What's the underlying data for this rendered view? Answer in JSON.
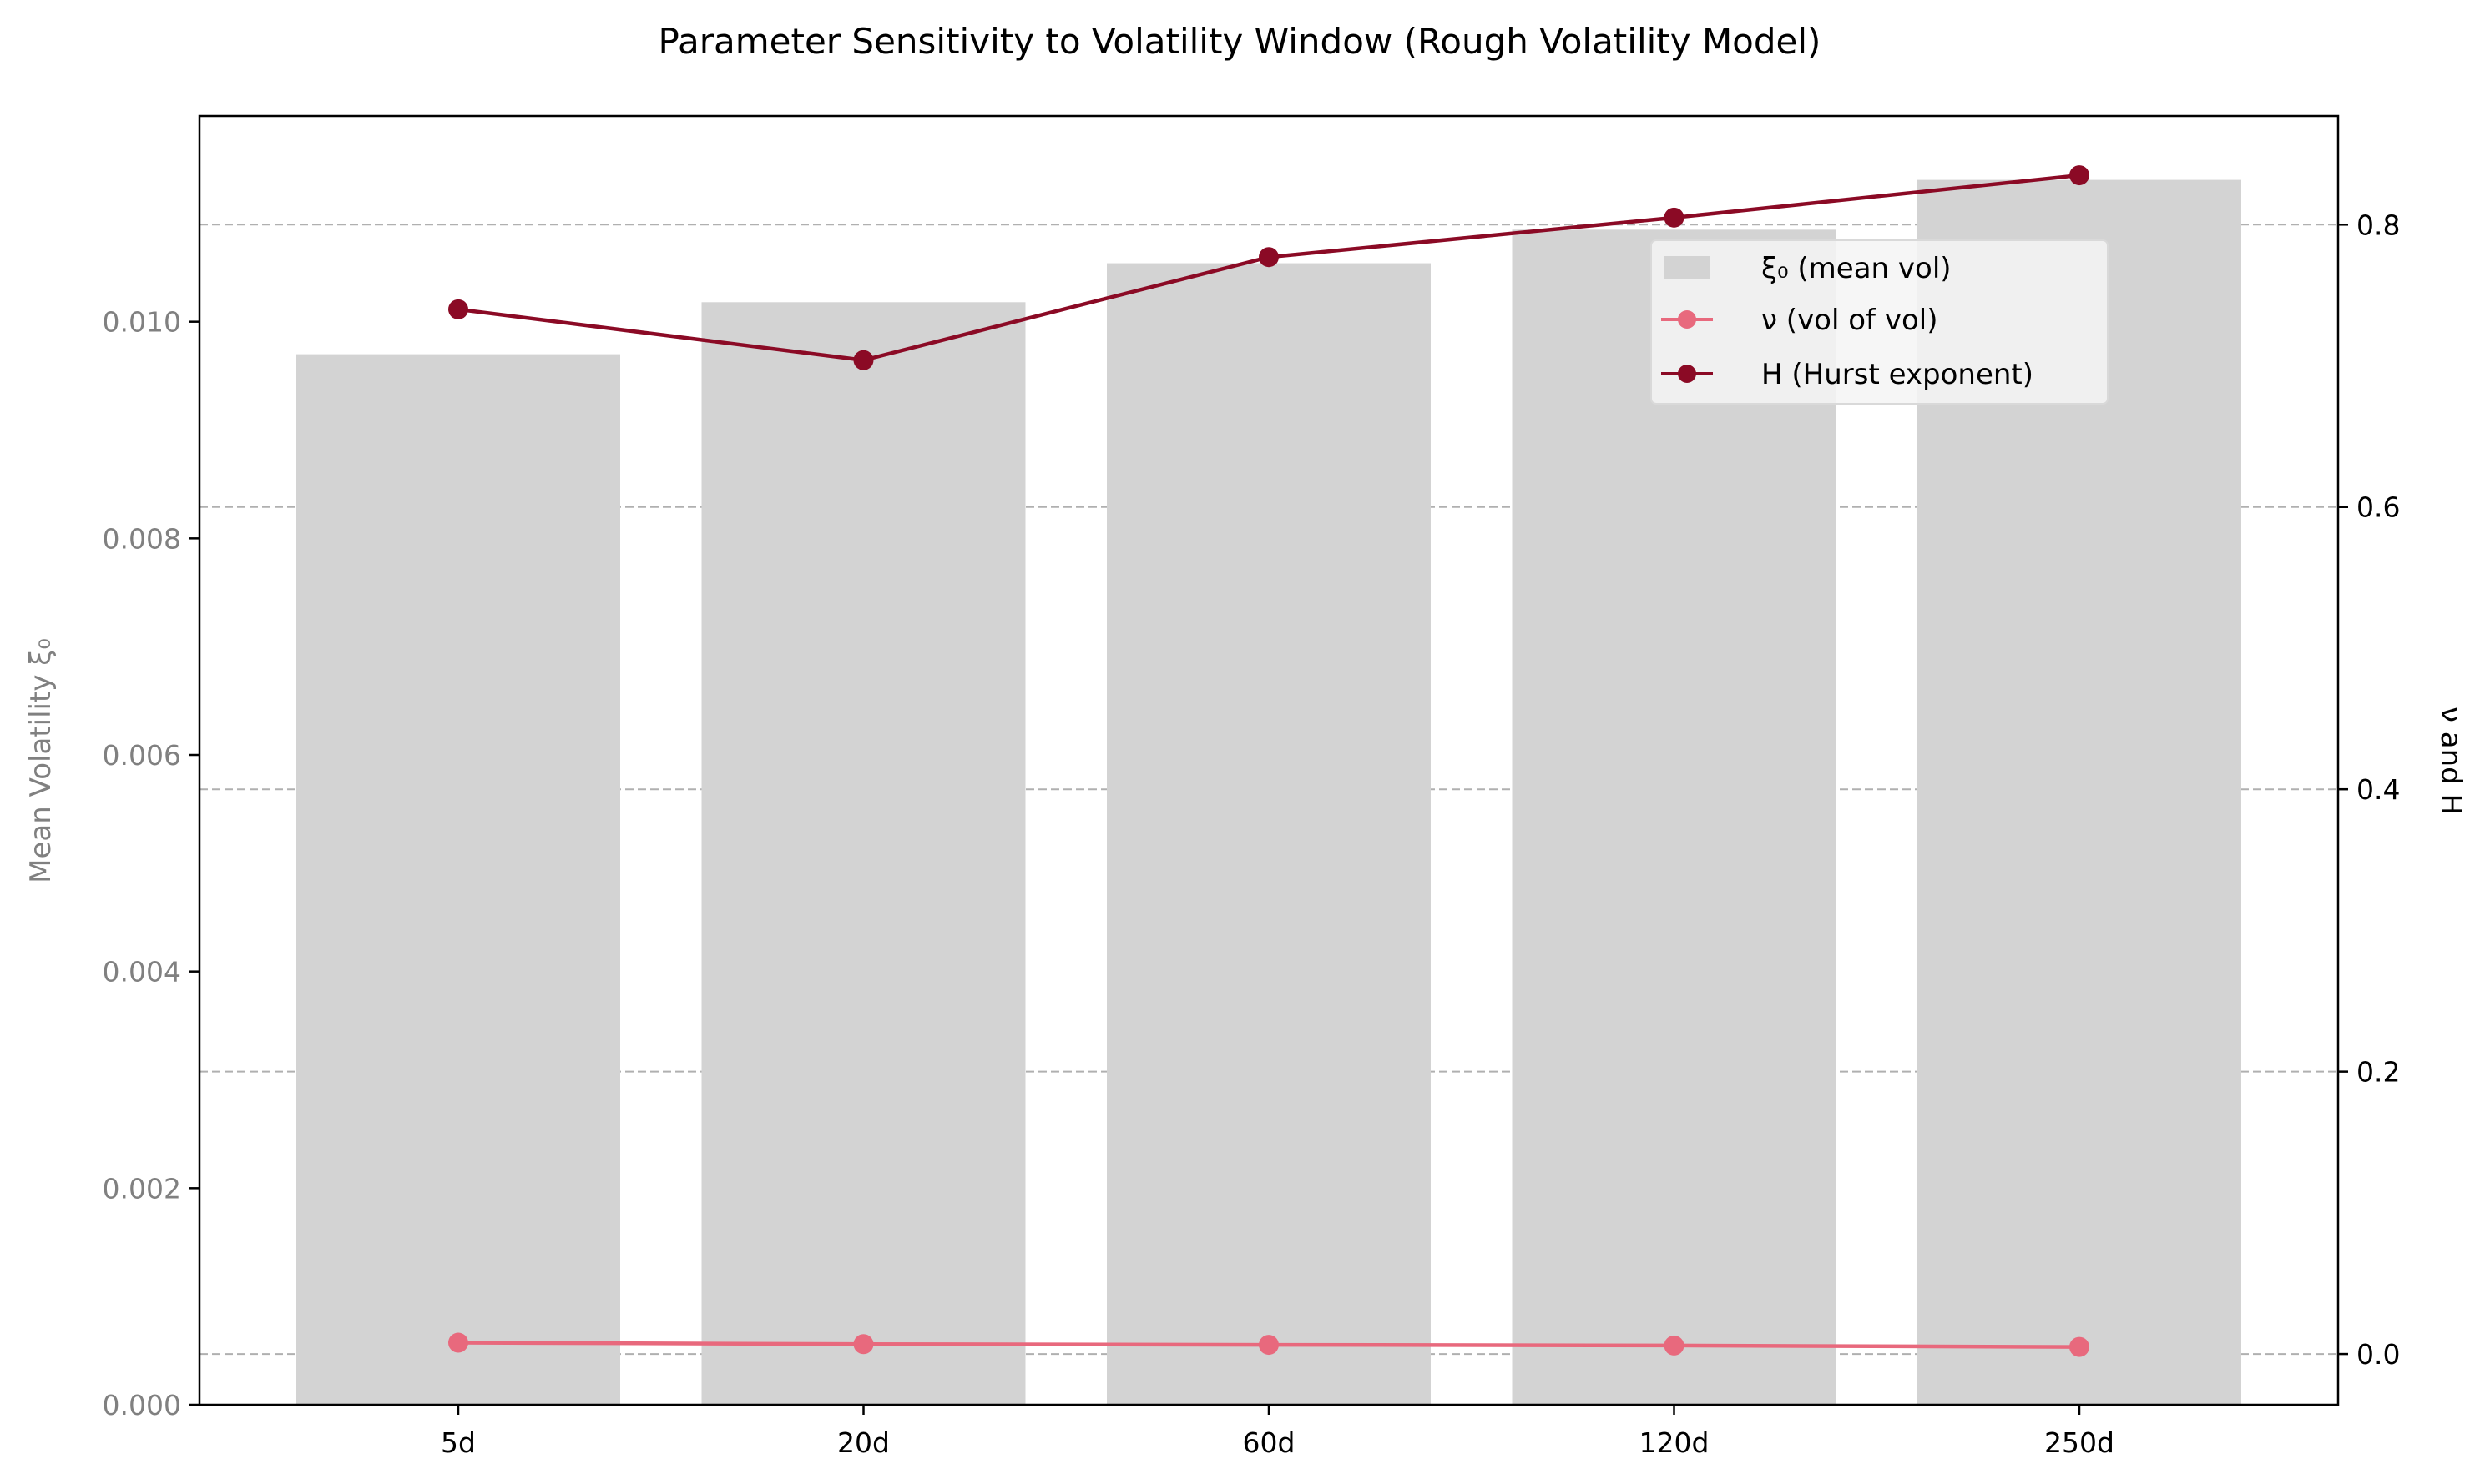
{
  "chart_data": {
    "type": "bar",
    "title": "Parameter Sensitivity to Volatility Window (Rough Volatility Model)",
    "categories": [
      "5d",
      "20d",
      "60d",
      "120d",
      "250d"
    ],
    "bar_series": {
      "name": "ξ₀ (mean vol)",
      "values": [
        0.0097,
        0.01018,
        0.01054,
        0.01085,
        0.01131
      ],
      "color": "#d3d3d3"
    },
    "line_series": [
      {
        "name": "ν (vol of vol)",
        "values": [
          0.008,
          0.007,
          0.0065,
          0.006,
          0.005
        ],
        "color": "#e8697d"
      },
      {
        "name": "H (Hurst exponent)",
        "values": [
          0.74,
          0.704,
          0.777,
          0.805,
          0.835
        ],
        "color": "#8b0a25"
      }
    ],
    "ylabel_left": "Mean Volatility ξ₀",
    "ylabel_right": "ν and H",
    "xlabel": "",
    "ylim_left": [
      0,
      0.0119
    ],
    "yticks_left": [
      "0.000",
      "0.002",
      "0.004",
      "0.006",
      "0.008",
      "0.010"
    ],
    "ylim_right": [
      -0.036,
      0.877
    ],
    "yticks_right": [
      "0.0",
      "0.2",
      "0.4",
      "0.6",
      "0.8"
    ],
    "grid": "horizontal-dashed-on-right-axis",
    "legend_position": "upper-right",
    "colors": {
      "left_axis_text": "#808080",
      "grid": "#b0b0b0"
    }
  }
}
